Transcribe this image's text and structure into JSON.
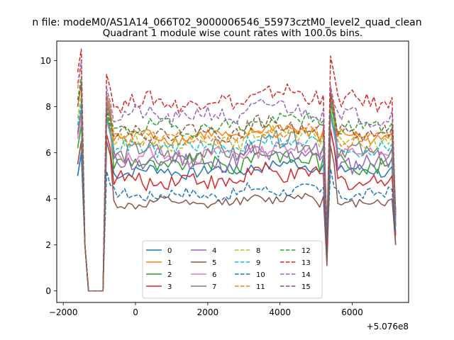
{
  "chart_data": {
    "type": "line",
    "suptitle": "n file: modeM0/AS1A14_066T02_9000006546_55973cztM0_level2_quad_clean",
    "title": "Quadrant 1 module wise count rates with 100.0s bins.",
    "xlabel": "",
    "ylabel": "",
    "x_offset_label": "+5.076e8",
    "xlim": [
      -2180,
      7560
    ],
    "ylim": [
      -0.5,
      10.85
    ],
    "xticks": [
      -2000,
      0,
      2000,
      4000,
      6000
    ],
    "xtick_labels": [
      "−2000",
      "0",
      "2000",
      "4000",
      "6000"
    ],
    "yticks": [
      0,
      2,
      4,
      6,
      8,
      10
    ],
    "ytick_labels": [
      "0",
      "2",
      "4",
      "6",
      "8",
      "10"
    ],
    "grid": false,
    "legend": {
      "position": "lower-center",
      "columns": 4
    },
    "time_axis": {
      "start": -1600,
      "step": 100,
      "gap_start_x": -1300,
      "gap_end_x": -900,
      "recover_x": -800,
      "dip_xs": [
        5200,
        5300,
        5400
      ],
      "end_x": 7200
    },
    "series": [
      {
        "name": "0",
        "color": "#1f77b4",
        "dash": "solid",
        "level": 5.2,
        "noise": 0.25,
        "start": 5.0,
        "peak": 6.5,
        "spike": 7.0,
        "drop": 2.4,
        "end": 2.0,
        "amp": 0.25
      },
      {
        "name": "1",
        "color": "#ff7f0e",
        "dash": "solid",
        "level": 6.7,
        "noise": 0.25,
        "start": 8.0,
        "peak": 8.3,
        "spike": 8.5,
        "drop": 2.0,
        "end": 3.0,
        "amp": 0.3
      },
      {
        "name": "2",
        "color": "#2ca02c",
        "dash": "solid",
        "level": 5.5,
        "noise": 0.35,
        "start": 6.2,
        "peak": 7.6,
        "spike": 7.8,
        "drop": 1.7,
        "end": 2.9,
        "amp": 0.35
      },
      {
        "name": "3",
        "color": "#d62728",
        "dash": "solid",
        "level": 4.8,
        "noise": 0.35,
        "start": 5.5,
        "peak": 6.8,
        "spike": 7.0,
        "drop": 1.3,
        "end": 2.4,
        "amp": 0.3
      },
      {
        "name": "4",
        "color": "#9467bd",
        "dash": "solid",
        "level": 5.6,
        "noise": 0.4,
        "start": 6.8,
        "peak": 8.2,
        "spike": 8.3,
        "drop": 2.0,
        "end": 2.8,
        "amp": 0.35
      },
      {
        "name": "5",
        "color": "#8c564b",
        "dash": "solid",
        "level": 3.8,
        "noise": 0.2,
        "start": 5.5,
        "peak": 6.5,
        "spike": 6.3,
        "drop": 1.1,
        "end": 2.0,
        "amp": 0.25
      },
      {
        "name": "6",
        "color": "#e377c2",
        "dash": "solid",
        "level": 5.9,
        "noise": 0.3,
        "start": 6.6,
        "peak": 7.4,
        "spike": 7.6,
        "drop": 2.5,
        "end": 3.0,
        "amp": 0.3
      },
      {
        "name": "7",
        "color": "#7f7f7f",
        "dash": "solid",
        "level": 6.0,
        "noise": 0.4,
        "start": 6.9,
        "peak": 8.5,
        "spike": 8.7,
        "drop": 2.6,
        "end": 2.8,
        "amp": 0.4
      },
      {
        "name": "8",
        "color": "#bcbd22",
        "dash": "dashed",
        "level": 6.5,
        "noise": 0.3,
        "start": 7.5,
        "peak": 8.0,
        "spike": 8.1,
        "drop": 2.7,
        "end": 3.2,
        "amp": 0.3
      },
      {
        "name": "9",
        "color": "#17becf",
        "dash": "dashed",
        "level": 6.2,
        "noise": 0.3,
        "start": 7.2,
        "peak": 7.5,
        "spike": 7.7,
        "drop": 2.4,
        "end": 3.1,
        "amp": 0.3
      },
      {
        "name": "10",
        "color": "#1f77b4",
        "dash": "dashed",
        "level": 4.2,
        "noise": 0.25,
        "start": 5.0,
        "peak": 5.2,
        "spike": 5.3,
        "drop": 1.8,
        "end": 2.6,
        "amp": 0.2
      },
      {
        "name": "11",
        "color": "#ff7f0e",
        "dash": "dashed",
        "level": 6.6,
        "noise": 0.3,
        "start": 8.8,
        "peak": 8.6,
        "spike": 8.7,
        "drop": 2.9,
        "end": 3.5,
        "amp": 0.3
      },
      {
        "name": "12",
        "color": "#2ca02c",
        "dash": "dashed",
        "level": 7.1,
        "noise": 0.3,
        "start": 8.3,
        "peak": 8.0,
        "spike": 8.2,
        "drop": 2.5,
        "end": 3.3,
        "amp": 0.3
      },
      {
        "name": "13",
        "color": "#d62728",
        "dash": "dashed",
        "level": 8.2,
        "noise": 0.35,
        "start": 9.5,
        "peak": 9.4,
        "spike": 10.2,
        "drop": 2.0,
        "end": 3.3,
        "amp": 0.35
      },
      {
        "name": "14",
        "color": "#9467bd",
        "dash": "dashed",
        "level": 7.6,
        "noise": 0.35,
        "start": 9.0,
        "peak": 8.8,
        "spike": 8.9,
        "drop": 2.3,
        "end": 3.2,
        "amp": 0.35
      },
      {
        "name": "15",
        "color": "#8c564b",
        "dash": "dashed",
        "level": 6.9,
        "noise": 0.3,
        "start": 8.0,
        "peak": 7.8,
        "spike": 8.6,
        "drop": 2.2,
        "end": 3.4,
        "amp": 0.3
      }
    ]
  }
}
